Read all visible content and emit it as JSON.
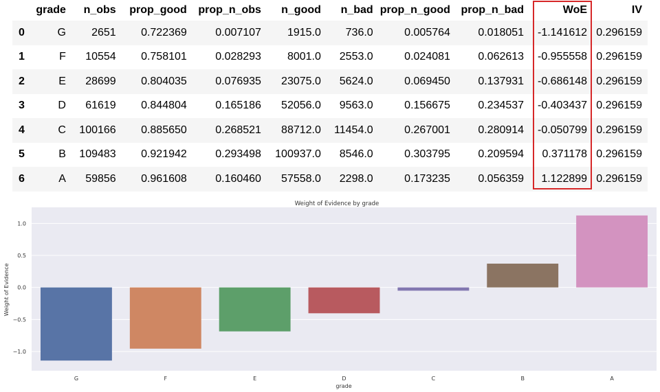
{
  "table": {
    "columns": [
      "",
      "grade",
      "n_obs",
      "prop_good",
      "prop_n_obs",
      "n_good",
      "n_bad",
      "prop_n_good",
      "prop_n_bad",
      "WoE",
      "IV"
    ],
    "rows": [
      [
        "0",
        "G",
        "2651",
        "0.722369",
        "0.007107",
        "1915.0",
        "736.0",
        "0.005764",
        "0.018051",
        "-1.141612",
        "0.296159"
      ],
      [
        "1",
        "F",
        "10554",
        "0.758101",
        "0.028293",
        "8001.0",
        "2553.0",
        "0.024081",
        "0.062613",
        "-0.955558",
        "0.296159"
      ],
      [
        "2",
        "E",
        "28699",
        "0.804035",
        "0.076935",
        "23075.0",
        "5624.0",
        "0.069450",
        "0.137931",
        "-0.686148",
        "0.296159"
      ],
      [
        "3",
        "D",
        "61619",
        "0.844804",
        "0.165186",
        "52056.0",
        "9563.0",
        "0.156675",
        "0.234537",
        "-0.403437",
        "0.296159"
      ],
      [
        "4",
        "C",
        "100166",
        "0.885650",
        "0.268521",
        "88712.0",
        "11454.0",
        "0.267001",
        "0.280914",
        "-0.050799",
        "0.296159"
      ],
      [
        "5",
        "B",
        "109483",
        "0.921942",
        "0.293498",
        "100937.0",
        "8546.0",
        "0.303795",
        "0.209594",
        "0.371178",
        "0.296159"
      ],
      [
        "6",
        "A",
        "59856",
        "0.961608",
        "0.160460",
        "57558.0",
        "2298.0",
        "0.173235",
        "0.056359",
        "1.122899",
        "0.296159"
      ]
    ],
    "highlight_column": "WoE",
    "highlight_color": "#d62728"
  },
  "chart_data": {
    "type": "bar",
    "title": "Weight of Evidence by grade",
    "xlabel": "grade",
    "ylabel": "Weight of Evidence",
    "categories": [
      "G",
      "F",
      "E",
      "D",
      "C",
      "B",
      "A"
    ],
    "values": [
      -1.141612,
      -0.955558,
      -0.686148,
      -0.403437,
      -0.050799,
      0.371178,
      1.122899
    ],
    "colors": [
      "#5874a6",
      "#cf8763",
      "#5d9f6a",
      "#b85a5f",
      "#8277b0",
      "#8b7462",
      "#d393c0"
    ],
    "ylim": [
      -1.3,
      1.25
    ],
    "yticks": [
      -1.0,
      -0.5,
      0.0,
      0.5,
      1.0
    ],
    "ytick_labels": [
      "−1.0",
      "−0.5",
      "0.0",
      "0.5",
      "1.0"
    ],
    "grid": true,
    "background": "#eaeaf2"
  }
}
